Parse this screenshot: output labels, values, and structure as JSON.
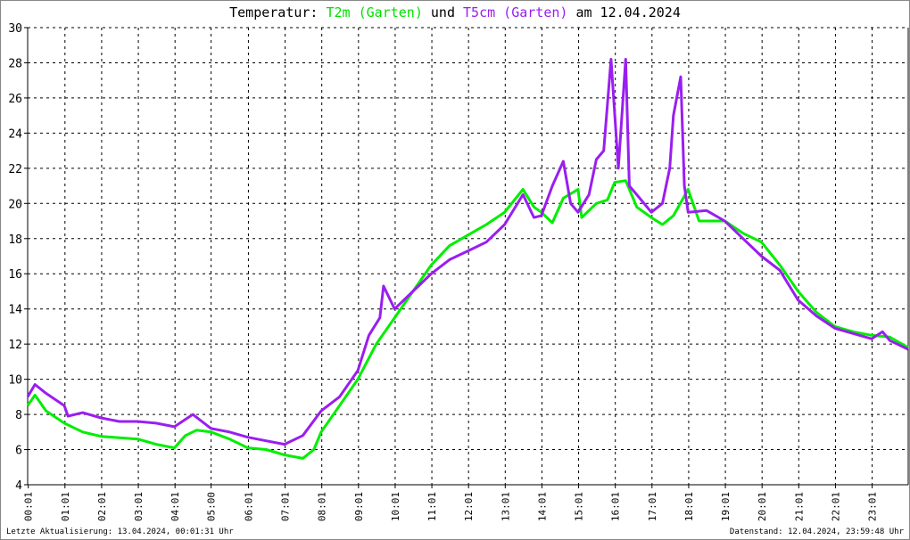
{
  "chart_data": {
    "type": "line",
    "title": {
      "prefix": "Temperatur: ",
      "series1": "T2m (Garten)",
      "mid": " und ",
      "series2": "T5cm (Garten)",
      "suffix": " am 12.04.2024"
    },
    "ylim": [
      4,
      30
    ],
    "yticks": [
      4,
      6,
      8,
      10,
      12,
      14,
      16,
      18,
      20,
      22,
      24,
      26,
      28,
      30
    ],
    "xlim_hours": [
      0,
      24
    ],
    "xticks": [
      "00:01",
      "01:01",
      "02:01",
      "03:01",
      "04:01",
      "05:00",
      "06:01",
      "07:01",
      "08:01",
      "09:01",
      "10:01",
      "11:01",
      "12:01",
      "13:01",
      "14:01",
      "15:01",
      "16:01",
      "17:01",
      "18:01",
      "19:01",
      "20:01",
      "21:01",
      "22:01",
      "23:01"
    ],
    "grid": true,
    "series": [
      {
        "name": "T2m (Garten)",
        "color": "#00ee00",
        "points": [
          [
            0,
            8.5
          ],
          [
            0.2,
            9.1
          ],
          [
            0.5,
            8.2
          ],
          [
            1,
            7.5
          ],
          [
            1.5,
            7.0
          ],
          [
            2,
            6.75
          ],
          [
            3,
            6.6
          ],
          [
            3.5,
            6.3
          ],
          [
            4,
            6.1
          ],
          [
            4.3,
            6.8
          ],
          [
            4.6,
            7.1
          ],
          [
            5,
            7.0
          ],
          [
            5.5,
            6.6
          ],
          [
            6,
            6.1
          ],
          [
            6.5,
            6.0
          ],
          [
            7,
            5.7
          ],
          [
            7.5,
            5.5
          ],
          [
            7.8,
            6.0
          ],
          [
            8,
            7.0
          ],
          [
            8.5,
            8.5
          ],
          [
            9,
            10.0
          ],
          [
            9.5,
            12.0
          ],
          [
            10,
            13.5
          ],
          [
            10.5,
            15.0
          ],
          [
            11,
            16.5
          ],
          [
            11.5,
            17.6
          ],
          [
            12,
            18.2
          ],
          [
            12.5,
            18.8
          ],
          [
            13,
            19.5
          ],
          [
            13.5,
            20.8
          ],
          [
            13.8,
            19.8
          ],
          [
            14,
            19.5
          ],
          [
            14.3,
            18.9
          ],
          [
            14.6,
            20.3
          ],
          [
            15,
            20.8
          ],
          [
            15.1,
            19.2
          ],
          [
            15.5,
            20.0
          ],
          [
            15.8,
            20.2
          ],
          [
            16,
            21.2
          ],
          [
            16.3,
            21.3
          ],
          [
            16.6,
            19.8
          ],
          [
            17,
            19.2
          ],
          [
            17.3,
            18.8
          ],
          [
            17.6,
            19.3
          ],
          [
            18,
            20.8
          ],
          [
            18.3,
            19.0
          ],
          [
            19,
            19.0
          ],
          [
            19.5,
            18.3
          ],
          [
            20,
            17.8
          ],
          [
            20.5,
            16.5
          ],
          [
            21,
            15.0
          ],
          [
            21.5,
            13.8
          ],
          [
            22,
            13.0
          ],
          [
            22.5,
            12.7
          ],
          [
            23,
            12.5
          ],
          [
            23.5,
            12.4
          ],
          [
            24,
            11.8
          ]
        ]
      },
      {
        "name": "T5cm (Garten)",
        "color": "#9a1ef0",
        "points": [
          [
            0,
            9.0
          ],
          [
            0.2,
            9.7
          ],
          [
            0.5,
            9.2
          ],
          [
            1,
            8.5
          ],
          [
            1.1,
            7.9
          ],
          [
            1.5,
            8.1
          ],
          [
            2,
            7.8
          ],
          [
            2.5,
            7.6
          ],
          [
            3,
            7.6
          ],
          [
            3.5,
            7.5
          ],
          [
            4,
            7.3
          ],
          [
            4.5,
            8.0
          ],
          [
            5,
            7.2
          ],
          [
            5.5,
            7.0
          ],
          [
            6,
            6.7
          ],
          [
            6.5,
            6.5
          ],
          [
            7,
            6.3
          ],
          [
            7.5,
            6.8
          ],
          [
            8,
            8.2
          ],
          [
            8.5,
            9.0
          ],
          [
            9,
            10.5
          ],
          [
            9.3,
            12.5
          ],
          [
            9.6,
            13.5
          ],
          [
            9.7,
            15.3
          ],
          [
            10,
            14.0
          ],
          [
            10.5,
            15.0
          ],
          [
            11,
            16.0
          ],
          [
            11.5,
            16.8
          ],
          [
            12,
            17.3
          ],
          [
            12.5,
            17.8
          ],
          [
            13,
            18.8
          ],
          [
            13.5,
            20.5
          ],
          [
            13.8,
            19.2
          ],
          [
            14,
            19.3
          ],
          [
            14.3,
            21.0
          ],
          [
            14.6,
            22.4
          ],
          [
            14.8,
            20.0
          ],
          [
            15,
            19.5
          ],
          [
            15.3,
            20.5
          ],
          [
            15.5,
            22.5
          ],
          [
            15.7,
            23.0
          ],
          [
            15.9,
            28.2
          ],
          [
            16.1,
            22.0
          ],
          [
            16.3,
            28.2
          ],
          [
            16.4,
            21.0
          ],
          [
            16.6,
            20.5
          ],
          [
            17,
            19.5
          ],
          [
            17.3,
            20.0
          ],
          [
            17.5,
            22.0
          ],
          [
            17.6,
            25.0
          ],
          [
            17.8,
            27.2
          ],
          [
            17.9,
            21.0
          ],
          [
            18,
            19.5
          ],
          [
            18.5,
            19.6
          ],
          [
            19,
            19.0
          ],
          [
            19.5,
            18.0
          ],
          [
            20,
            17.0
          ],
          [
            20.5,
            16.2
          ],
          [
            21,
            14.5
          ],
          [
            21.5,
            13.6
          ],
          [
            22,
            12.9
          ],
          [
            22.5,
            12.6
          ],
          [
            23,
            12.3
          ],
          [
            23.3,
            12.7
          ],
          [
            23.5,
            12.2
          ],
          [
            24,
            11.7
          ]
        ]
      }
    ]
  },
  "footer": {
    "left": "Letzte Aktualisierung: 13.04.2024, 00:01:31 Uhr",
    "right": "Datenstand: 12.04.2024, 23:59:48 Uhr"
  }
}
